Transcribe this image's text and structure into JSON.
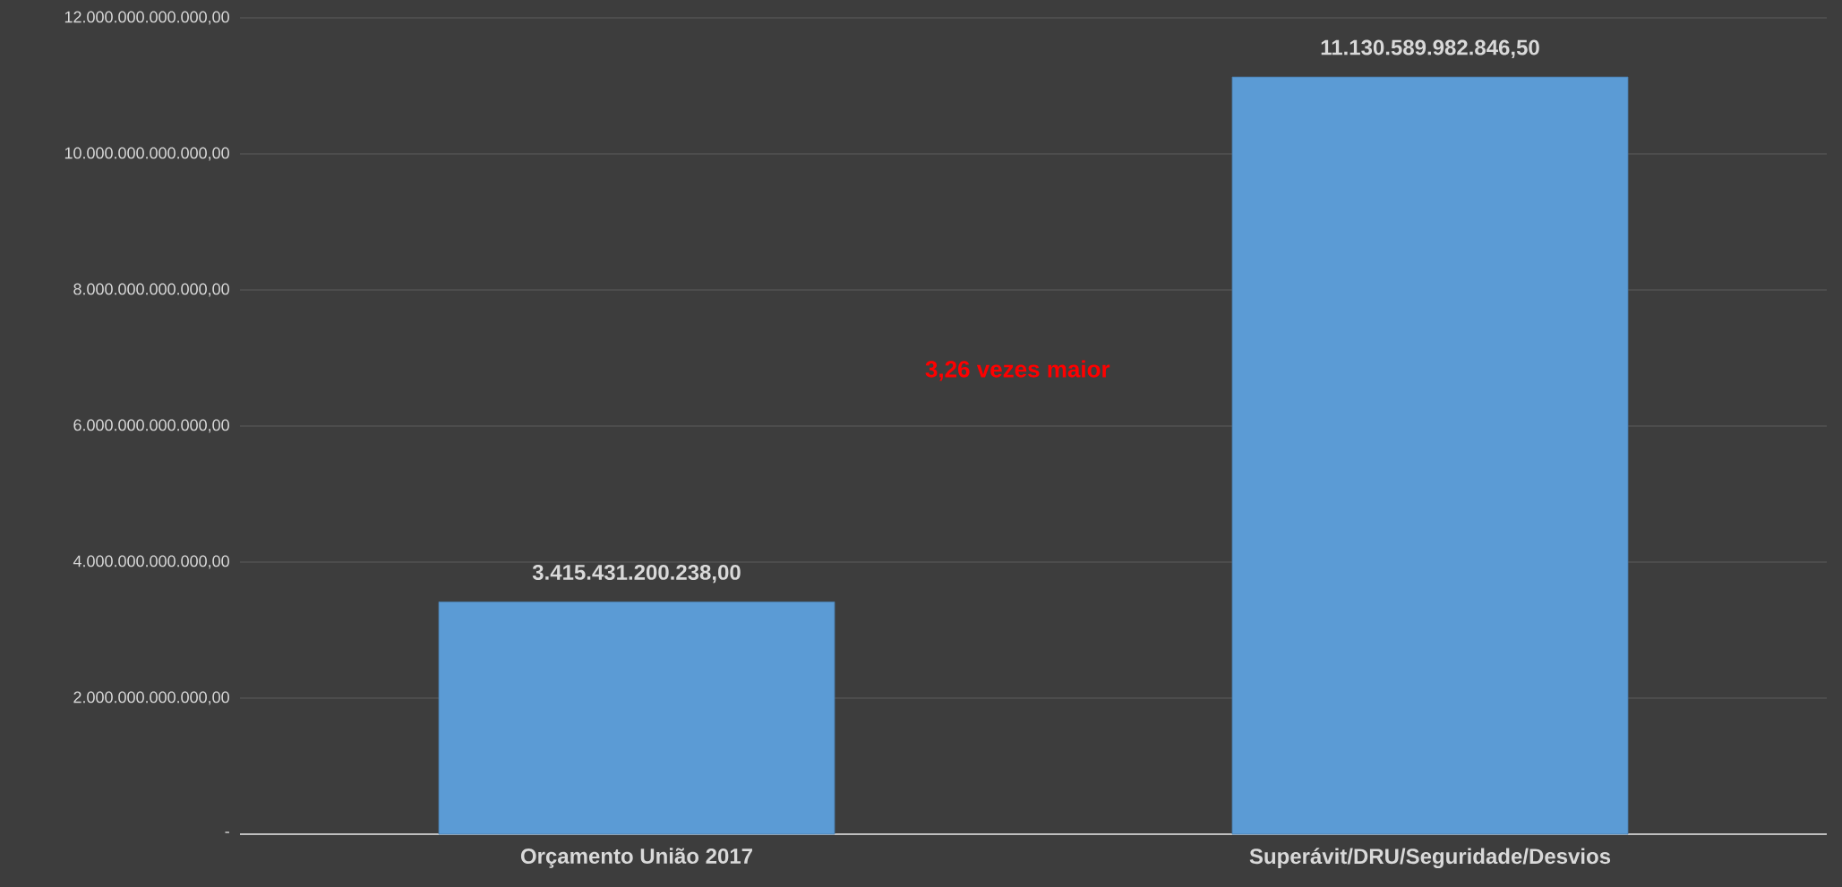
{
  "chart_data": {
    "type": "bar",
    "categories": [
      "Orçamento União 2017",
      "Superávit/DRU/Seguridade/Desvios"
    ],
    "values": [
      3415431200238,
      11130589982846.5
    ],
    "value_labels": [
      "3.415.431.200.238,00",
      "11.130.589.982.846,50"
    ],
    "color": "#5b9bd5",
    "ylim": [
      0,
      12000000000000
    ],
    "yticks": [
      {
        "value": 0,
        "label": "-"
      },
      {
        "value": 2000000000000,
        "label": "2.000.000.000.000,00"
      },
      {
        "value": 4000000000000,
        "label": "4.000.000.000.000,00"
      },
      {
        "value": 6000000000000,
        "label": "6.000.000.000.000,00"
      },
      {
        "value": 8000000000000,
        "label": "8.000.000.000.000,00"
      },
      {
        "value": 10000000000000,
        "label": "10.000.000.000.000,00"
      },
      {
        "value": 12000000000000,
        "label": "12.000.000.000.000,00"
      }
    ],
    "grid": "y",
    "annotations": [
      "3,26 vezes maior"
    ]
  }
}
